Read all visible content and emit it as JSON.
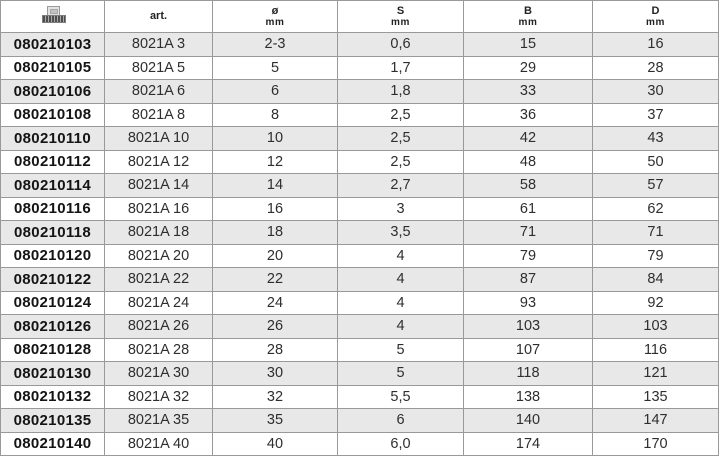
{
  "table": {
    "columns": [
      {
        "key": "code",
        "label": "",
        "sub": "",
        "icon": "ean-barcode-icon"
      },
      {
        "key": "art",
        "label": "art.",
        "sub": ""
      },
      {
        "key": "diameter",
        "label": "ø",
        "sub": "mm"
      },
      {
        "key": "s",
        "label": "S",
        "sub": "mm"
      },
      {
        "key": "b",
        "label": "B",
        "sub": "mm"
      },
      {
        "key": "d",
        "label": "D",
        "sub": "mm"
      }
    ],
    "rows": [
      [
        "080210103",
        "8021A 3",
        "2-3",
        "0,6",
        "15",
        "16"
      ],
      [
        "080210105",
        "8021A 5",
        "5",
        "1,7",
        "29",
        "28"
      ],
      [
        "080210106",
        "8021A 6",
        "6",
        "1,8",
        "33",
        "30"
      ],
      [
        "080210108",
        "8021A 8",
        "8",
        "2,5",
        "36",
        "37"
      ],
      [
        "080210110",
        "8021A 10",
        "10",
        "2,5",
        "42",
        "43"
      ],
      [
        "080210112",
        "8021A 12",
        "12",
        "2,5",
        "48",
        "50"
      ],
      [
        "080210114",
        "8021A 14",
        "14",
        "2,7",
        "58",
        "57"
      ],
      [
        "080210116",
        "8021A 16",
        "16",
        "3",
        "61",
        "62"
      ],
      [
        "080210118",
        "8021A 18",
        "18",
        "3,5",
        "71",
        "71"
      ],
      [
        "080210120",
        "8021A 20",
        "20",
        "4",
        "79",
        "79"
      ],
      [
        "080210122",
        "8021A 22",
        "22",
        "4",
        "87",
        "84"
      ],
      [
        "080210124",
        "8021A 24",
        "24",
        "4",
        "93",
        "92"
      ],
      [
        "080210126",
        "8021A 26",
        "26",
        "4",
        "103",
        "103"
      ],
      [
        "080210128",
        "8021A 28",
        "28",
        "5",
        "107",
        "116"
      ],
      [
        "080210130",
        "8021A 30",
        "30",
        "5",
        "118",
        "121"
      ],
      [
        "080210132",
        "8021A 32",
        "32",
        "5,5",
        "138",
        "135"
      ],
      [
        "080210135",
        "8021A 35",
        "35",
        "6",
        "140",
        "147"
      ],
      [
        "080210140",
        "8021A 40",
        "40",
        "6,0",
        "174",
        "170"
      ]
    ]
  },
  "colors": {
    "row_alt": "#e8e8e8",
    "grid_border": "#999999",
    "header_rule": "#5a5a5a",
    "code_text": "#141414",
    "value_text": "#2e2e2e"
  }
}
